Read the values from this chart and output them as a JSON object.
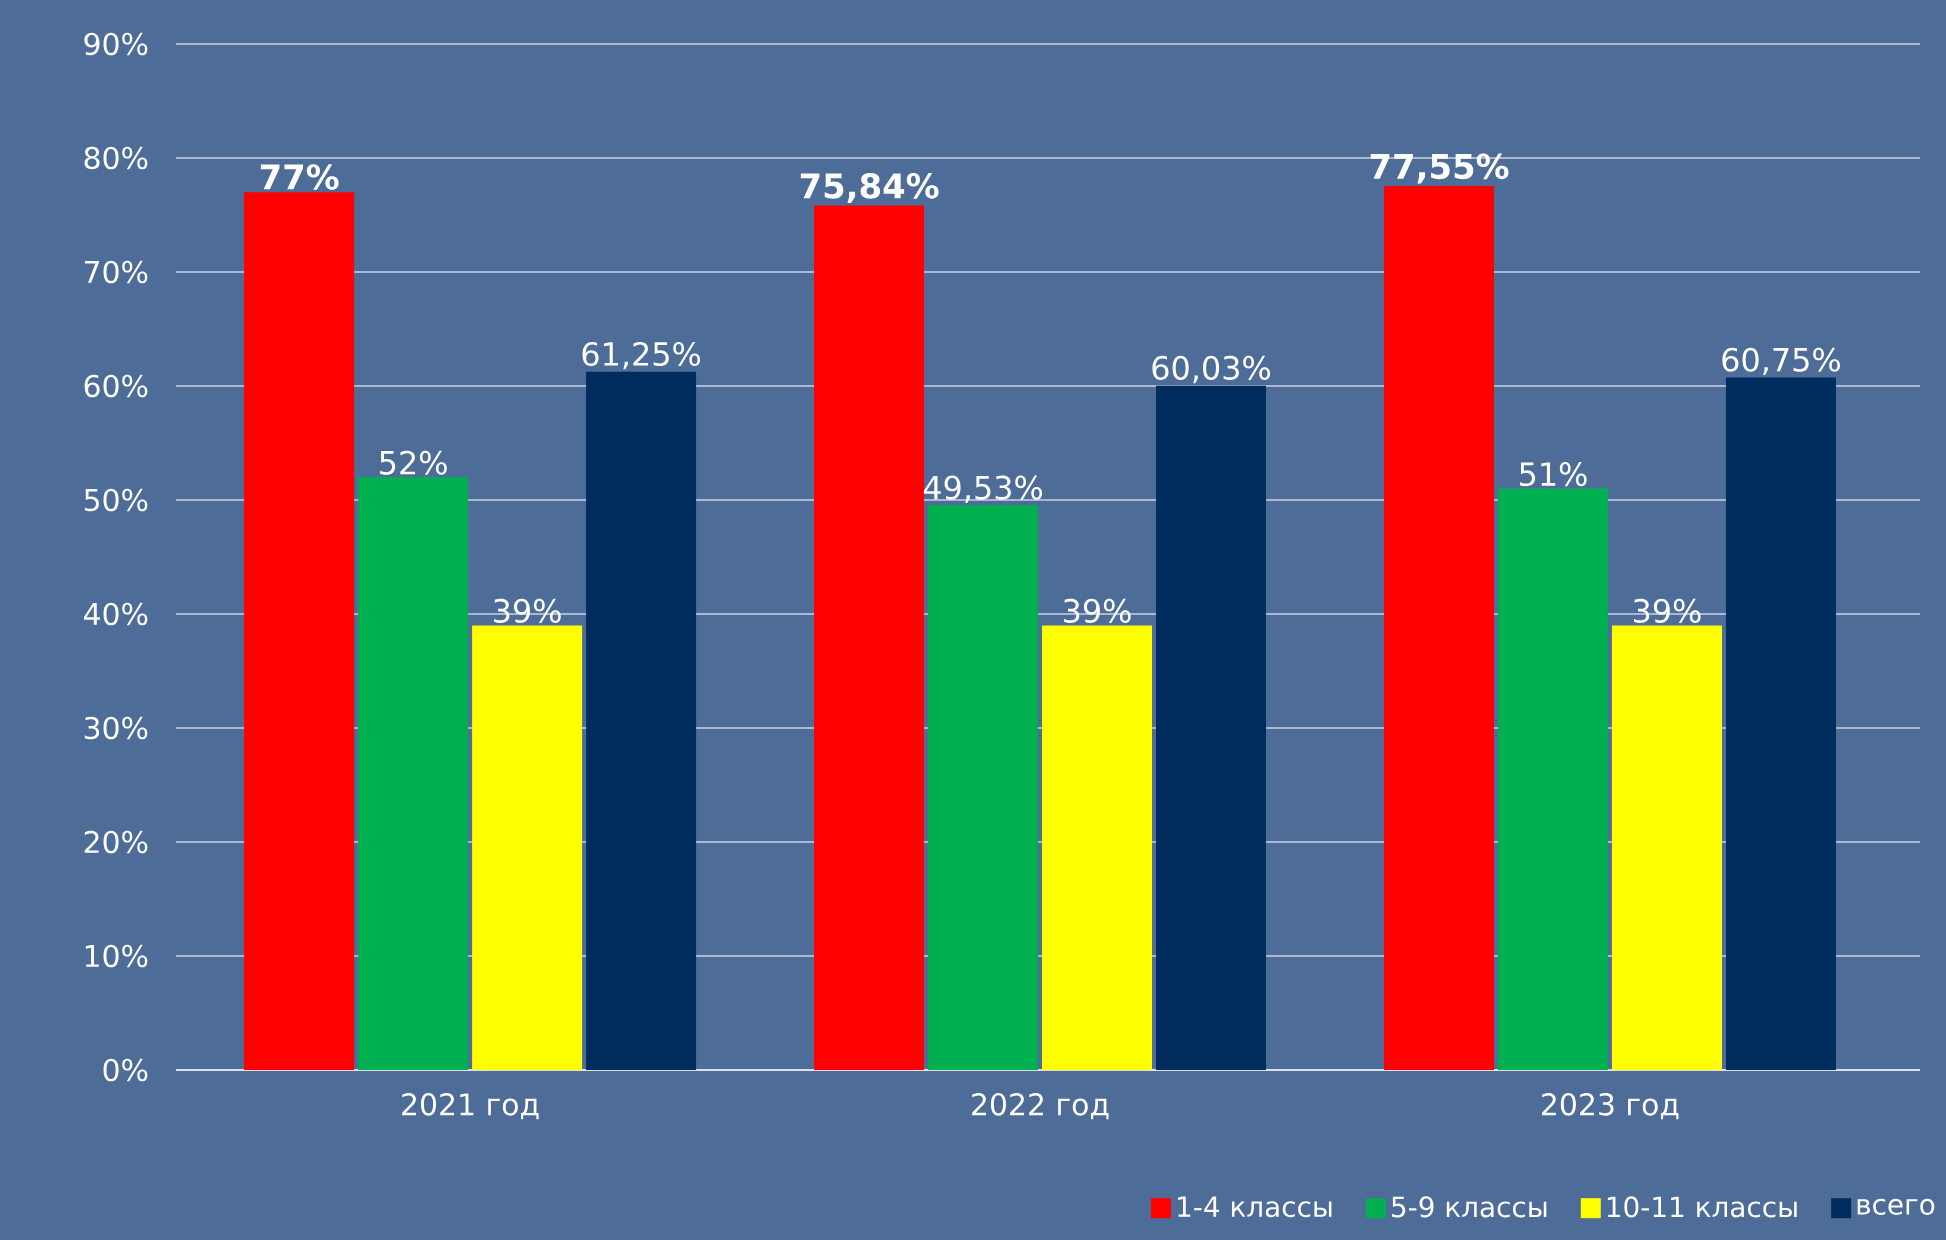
{
  "chart_data": {
    "type": "bar",
    "categories": [
      "2021 год",
      "2022 год",
      "2023 год"
    ],
    "series": [
      {
        "name": "1-4 классы",
        "color": "#ff0000",
        "values": [
          77,
          75.84,
          77.55
        ],
        "value_labels": [
          "77%",
          "75,84%",
          "77,55%"
        ]
      },
      {
        "name": "5-9 классы",
        "color": "#00b050",
        "values": [
          52,
          49.53,
          51
        ],
        "value_labels": [
          "52%",
          "49,53%",
          "51%"
        ]
      },
      {
        "name": "10-11 классы",
        "color": "#ffff00",
        "values": [
          39,
          39,
          39
        ],
        "value_labels": [
          "39%",
          "39%",
          "39%"
        ]
      },
      {
        "name": "всего",
        "color": "#002c5e",
        "values": [
          61.25,
          60.03,
          60.75
        ],
        "value_labels": [
          "61,25%",
          "60,03%",
          "60,75%"
        ]
      }
    ],
    "ylim": [
      0,
      90
    ],
    "yticks": [
      {
        "value": 0,
        "label": "0%"
      },
      {
        "value": 10,
        "label": "10%"
      },
      {
        "value": 20,
        "label": "20%"
      },
      {
        "value": 30,
        "label": "30%"
      },
      {
        "value": 40,
        "label": "40%"
      },
      {
        "value": 50,
        "label": "50%"
      },
      {
        "value": 60,
        "label": "60%"
      },
      {
        "value": 70,
        "label": "70%"
      },
      {
        "value": 80,
        "label": "80%"
      },
      {
        "value": 90,
        "label": "90%"
      }
    ],
    "grid": "y",
    "legend": "bottom right"
  }
}
